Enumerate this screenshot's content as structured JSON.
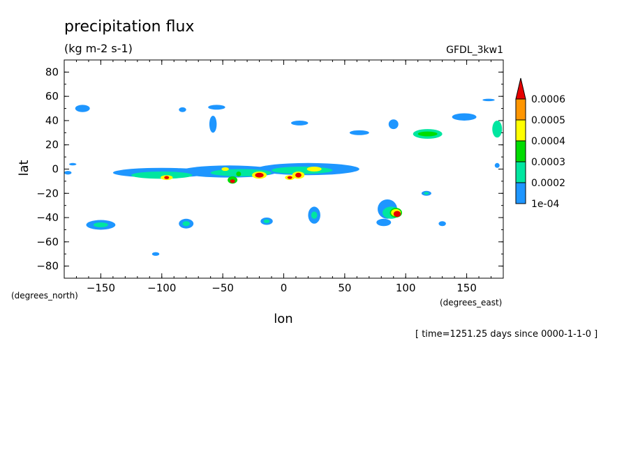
{
  "chart_data": {
    "type": "heatmap",
    "title": "precipitation flux",
    "subtitle": "(kg m-2 s-1)",
    "model_label": "GFDL_3kw1",
    "xlabel": "lon",
    "ylabel": "lat",
    "x_units": "(degrees_east)",
    "y_units": "(degrees_north)",
    "time_label": "[ time=1251.25 days since 0000-1-1-0 ]",
    "xlim": [
      -180,
      180
    ],
    "ylim": [
      -90,
      90
    ],
    "x_ticks": [
      -150,
      -100,
      -50,
      0,
      50,
      100,
      150
    ],
    "y_ticks": [
      -80,
      -60,
      -40,
      -20,
      0,
      20,
      40,
      60,
      80
    ],
    "grid": false,
    "legend_position": "right",
    "legend": {
      "levels": [
        "1e-04",
        "0.0002",
        "0.0003",
        "0.0004",
        "0.0005",
        "0.0006"
      ],
      "colors": [
        "#1e96ff",
        "#00e6a0",
        "#00dc00",
        "#ffff00",
        "#ff9600",
        "#e60000"
      ]
    },
    "regions": [
      {
        "lon": -165,
        "lat": 50,
        "rlon": 6,
        "rlat": 3,
        "level": 1
      },
      {
        "lon": -83,
        "lat": 49,
        "rlon": 3,
        "rlat": 2,
        "level": 1
      },
      {
        "lon": -55,
        "lat": 51,
        "rlon": 7,
        "rlat": 2,
        "level": 1
      },
      {
        "lon": -58,
        "lat": 37,
        "rlon": 3,
        "rlat": 7,
        "level": 1
      },
      {
        "lon": 13,
        "lat": 38,
        "rlon": 7,
        "rlat": 2,
        "level": 1
      },
      {
        "lon": 62,
        "lat": 30,
        "rlon": 8,
        "rlat": 2,
        "level": 1
      },
      {
        "lon": 90,
        "lat": 37,
        "rlon": 4,
        "rlat": 4,
        "level": 1
      },
      {
        "lon": 148,
        "lat": 43,
        "rlon": 10,
        "rlat": 3,
        "level": 1
      },
      {
        "lon": 168,
        "lat": 57,
        "rlon": 5,
        "rlat": 1,
        "level": 1
      },
      {
        "lon": 118,
        "lat": 29,
        "rlon": 12,
        "rlat": 4,
        "level": 2
      },
      {
        "lon": 118,
        "lat": 29,
        "rlon": 8,
        "rlat": 2,
        "level": 3
      },
      {
        "lon": 175,
        "lat": 33,
        "rlon": 4,
        "rlat": 7,
        "level": 2
      },
      {
        "lon": -100,
        "lat": -3,
        "rlon": 40,
        "rlat": 4,
        "level": 1
      },
      {
        "lon": -45,
        "lat": -2,
        "rlon": 40,
        "rlat": 5,
        "level": 1
      },
      {
        "lon": 20,
        "lat": 0,
        "rlon": 42,
        "rlat": 5,
        "level": 1
      },
      {
        "lon": -100,
        "lat": -5,
        "rlon": 25,
        "rlat": 3,
        "level": 2
      },
      {
        "lon": -35,
        "lat": -3,
        "rlon": 25,
        "rlat": 3,
        "level": 2
      },
      {
        "lon": 15,
        "lat": -1,
        "rlon": 25,
        "rlat": 3,
        "level": 2
      },
      {
        "lon": -96,
        "lat": -7,
        "rlon": 5,
        "rlat": 2,
        "level": 4
      },
      {
        "lon": -96,
        "lat": -7,
        "rlon": 2,
        "rlat": 1.3,
        "level": 6
      },
      {
        "lon": -42,
        "lat": -9,
        "rlon": 4,
        "rlat": 3,
        "level": 3
      },
      {
        "lon": -42,
        "lat": -10,
        "rlon": 2,
        "rlat": 1.5,
        "level": 6
      },
      {
        "lon": -20,
        "lat": -5,
        "rlon": 6,
        "rlat": 3,
        "level": 4
      },
      {
        "lon": -20,
        "lat": -5,
        "rlon": 3.5,
        "rlat": 2,
        "level": 6
      },
      {
        "lon": 5,
        "lat": -7,
        "rlon": 4,
        "rlat": 2,
        "level": 4
      },
      {
        "lon": 5,
        "lat": -7,
        "rlon": 2,
        "rlat": 1.2,
        "level": 6
      },
      {
        "lon": 12,
        "lat": -5,
        "rlon": 5,
        "rlat": 3,
        "level": 4
      },
      {
        "lon": 12,
        "lat": -5,
        "rlon": 2.5,
        "rlat": 2,
        "level": 6
      },
      {
        "lon": 25,
        "lat": 0,
        "rlon": 6,
        "rlat": 2,
        "level": 4
      },
      {
        "lon": -48,
        "lat": 0,
        "rlon": 3,
        "rlat": 1.5,
        "level": 4
      },
      {
        "lon": 117,
        "lat": -20,
        "rlon": 4,
        "rlat": 2,
        "level": 1
      },
      {
        "lon": 117,
        "lat": -20,
        "rlon": 2,
        "rlat": 1,
        "level": 2
      },
      {
        "lon": 85,
        "lat": -33,
        "rlon": 8,
        "rlat": 8,
        "level": 1
      },
      {
        "lon": 88,
        "lat": -36,
        "rlon": 7,
        "rlat": 5,
        "level": 2
      },
      {
        "lon": 92,
        "lat": -36,
        "rlon": 5,
        "rlat": 4,
        "level": 3
      },
      {
        "lon": 92,
        "lat": -36,
        "rlon": 4,
        "rlat": 3,
        "level": 4
      },
      {
        "lon": 93,
        "lat": -37,
        "rlon": 3,
        "rlat": 2.5,
        "level": 6
      },
      {
        "lon": 82,
        "lat": -44,
        "rlon": 6,
        "rlat": 3,
        "level": 1
      },
      {
        "lon": -150,
        "lat": -46,
        "rlon": 12,
        "rlat": 4,
        "level": 1
      },
      {
        "lon": -150,
        "lat": -46,
        "rlon": 6,
        "rlat": 2,
        "level": 2
      },
      {
        "lon": -80,
        "lat": -45,
        "rlon": 6,
        "rlat": 4,
        "level": 1
      },
      {
        "lon": -80,
        "lat": -45,
        "rlon": 3,
        "rlat": 2,
        "level": 2
      },
      {
        "lon": -14,
        "lat": -43,
        "rlon": 5,
        "rlat": 3,
        "level": 1
      },
      {
        "lon": -14,
        "lat": -43,
        "rlon": 2.5,
        "rlat": 1.5,
        "level": 2
      },
      {
        "lon": 25,
        "lat": -38,
        "rlon": 5,
        "rlat": 7,
        "level": 1
      },
      {
        "lon": 25,
        "lat": -38,
        "rlon": 2.5,
        "rlat": 3,
        "level": 2
      },
      {
        "lon": 130,
        "lat": -45,
        "rlon": 3,
        "rlat": 2,
        "level": 1
      },
      {
        "lon": -105,
        "lat": -70,
        "rlon": 3,
        "rlat": 1.5,
        "level": 1
      },
      {
        "lon": -173,
        "lat": 4,
        "rlon": 3,
        "rlat": 1,
        "level": 1
      },
      {
        "lon": -177,
        "lat": -3,
        "rlon": 3,
        "rlat": 1.5,
        "level": 1
      },
      {
        "lon": 175,
        "lat": 3,
        "rlon": 2,
        "rlat": 2,
        "level": 1
      },
      {
        "lon": -37,
        "lat": -4,
        "rlon": 2,
        "rlat": 2,
        "level": 3
      }
    ]
  }
}
